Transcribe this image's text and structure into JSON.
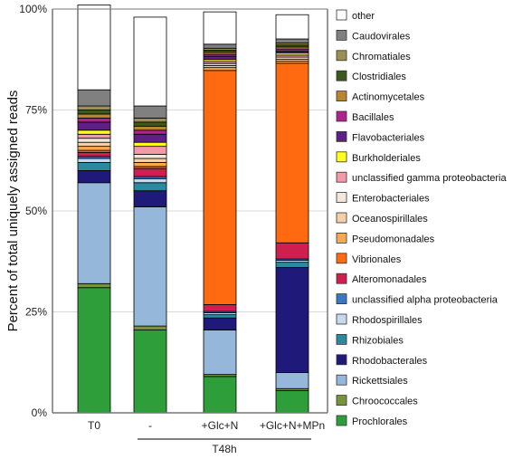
{
  "chart_data": {
    "type": "bar",
    "stacked": true,
    "ylabel": "Percent of total uniquely assigned reads",
    "yticks": [
      "0%",
      "25%",
      "50%",
      "75%",
      "100%"
    ],
    "ylim": [
      0,
      100
    ],
    "grid": true,
    "legend_position": "right",
    "categories": [
      "T0",
      "-",
      "+Glc+N",
      "+Glc+N+MPn"
    ],
    "group_label": "T48h",
    "series": [
      {
        "name": "Prochlorales",
        "color": "#2e9e3a",
        "values": [
          31,
          20.5,
          9,
          5.5
        ]
      },
      {
        "name": "Chroococcales",
        "color": "#77933c",
        "values": [
          1,
          1,
          0.5,
          0.5
        ]
      },
      {
        "name": "Rickettsiales",
        "color": "#95b8da",
        "values": [
          25,
          29.5,
          11,
          4
        ]
      },
      {
        "name": "Rhodobacterales",
        "color": "#1f1a7a",
        "values": [
          3,
          4,
          3,
          26
        ]
      },
      {
        "name": "Rhizobiales",
        "color": "#2b8aa0",
        "values": [
          2,
          2,
          0.8,
          1.3
        ]
      },
      {
        "name": "Rhodospirillales",
        "color": "#c6d9ee",
        "values": [
          1,
          1,
          0.5,
          0.5
        ]
      },
      {
        "name": "unclassified alpha proteobacteria",
        "color": "#3a78c4",
        "values": [
          0.5,
          0.5,
          0.3,
          0.3
        ]
      },
      {
        "name": "Alteromonadales",
        "color": "#d01e4e",
        "values": [
          1,
          2,
          1.7,
          4
        ]
      },
      {
        "name": "Vibrionales",
        "color": "#ff6a10",
        "values": [
          0.5,
          0.5,
          58,
          44.5
        ]
      },
      {
        "name": "Pseudomonadales",
        "color": "#f8a94e",
        "values": [
          1,
          1,
          0.7,
          0.5
        ]
      },
      {
        "name": "Oceanospirillales",
        "color": "#f4cfa8",
        "values": [
          1,
          1,
          0.5,
          0.5
        ]
      },
      {
        "name": "Enterobacteriales",
        "color": "#f3e6da",
        "values": [
          1,
          1,
          0.5,
          0.5
        ]
      },
      {
        "name": "unclassified gamma proteobacteria",
        "color": "#f29aa8",
        "values": [
          1,
          2,
          0.5,
          0.5
        ]
      },
      {
        "name": "Burkholderiales",
        "color": "#ffff1a",
        "values": [
          1,
          1,
          0.5,
          0.5
        ]
      },
      {
        "name": "Flavobacteriales",
        "color": "#5e1f86",
        "values": [
          2,
          2,
          0.8,
          0.5
        ]
      },
      {
        "name": "Bacillales",
        "color": "#b2228c",
        "values": [
          1,
          1,
          0.5,
          0.5
        ]
      },
      {
        "name": "Actinomycetales",
        "color": "#b8862f",
        "values": [
          1,
          1,
          0.5,
          0.5
        ]
      },
      {
        "name": "Clostridiales",
        "color": "#3c5a1e",
        "values": [
          1,
          1,
          0.5,
          0.5
        ]
      },
      {
        "name": "Chromatiales",
        "color": "#9a8f55",
        "values": [
          1,
          1,
          0.5,
          0.5
        ]
      },
      {
        "name": "Caudovirales",
        "color": "#808080",
        "values": [
          4,
          3,
          1,
          1
        ]
      },
      {
        "name": "other",
        "color": "#ffffff",
        "values": [
          21,
          22,
          8,
          6
        ]
      }
    ]
  }
}
